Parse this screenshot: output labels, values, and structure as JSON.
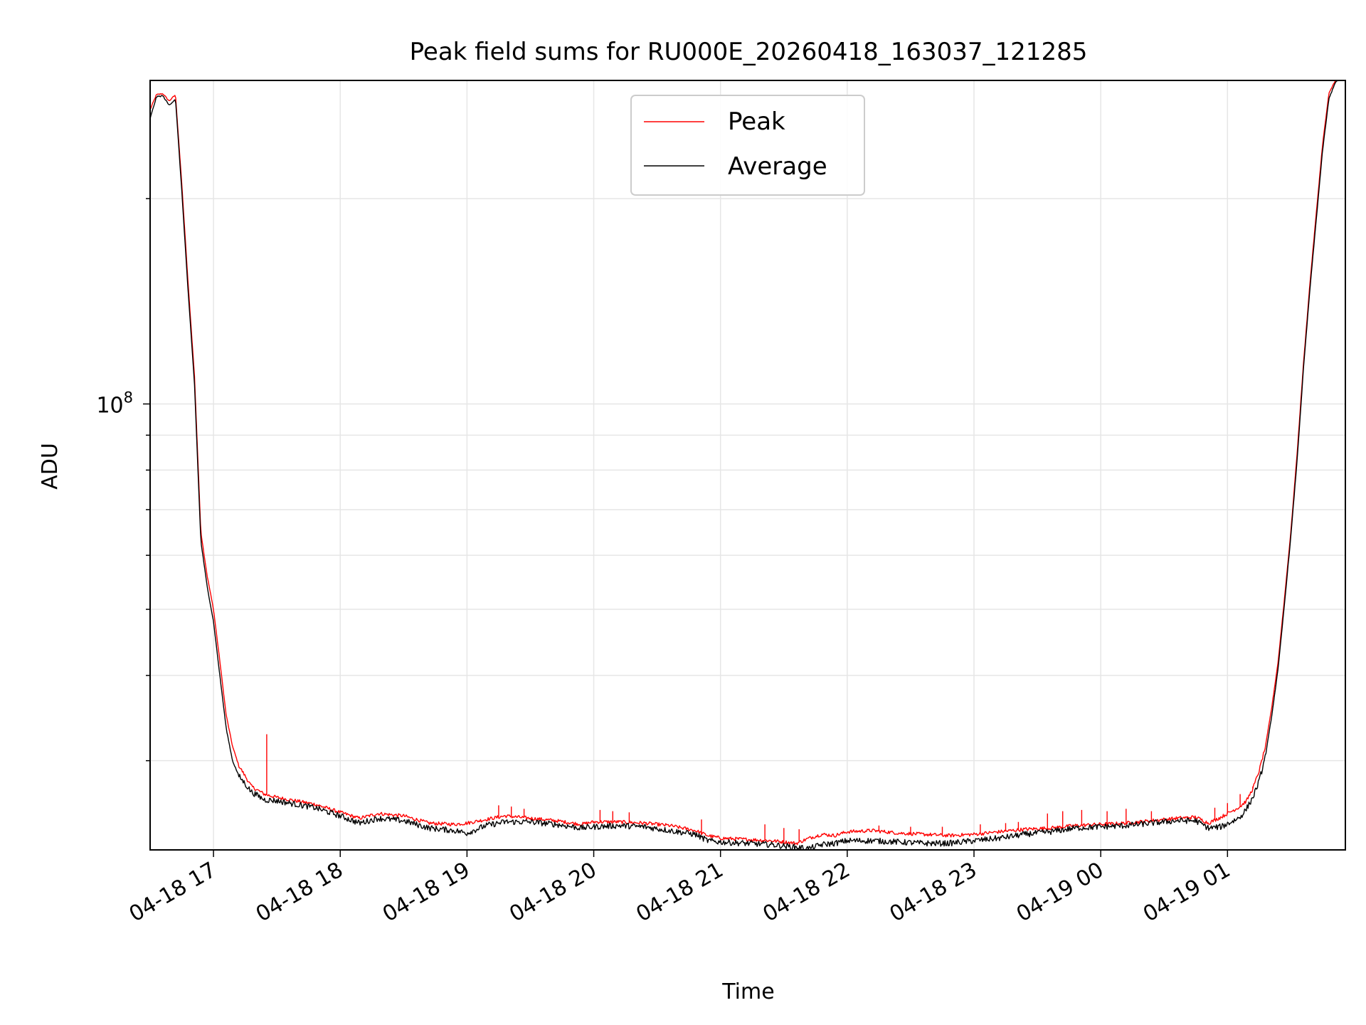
{
  "chart_data": {
    "type": "line",
    "title": "Peak field sums for RU000E_20260418_163037_121285",
    "xlabel": "Time",
    "ylabel": "ADU",
    "yscale": "log",
    "ylim": [
      22200000,
      298000000
    ],
    "xlim_hours": [
      16.5,
      25.93
    ],
    "grid": true,
    "legend_position": "upper center",
    "ytick_labels": [
      {
        "value": 100000000,
        "base": "10",
        "exp": "8"
      }
    ],
    "xtick_labels": [
      {
        "hour": 17,
        "label": "04-18 17"
      },
      {
        "hour": 18,
        "label": "04-18 18"
      },
      {
        "hour": 19,
        "label": "04-18 19"
      },
      {
        "hour": 20,
        "label": "04-18 20"
      },
      {
        "hour": 21,
        "label": "04-18 21"
      },
      {
        "hour": 22,
        "label": "04-18 22"
      },
      {
        "hour": 23,
        "label": "04-18 23"
      },
      {
        "hour": 24,
        "label": "04-19 00"
      },
      {
        "hour": 25,
        "label": "04-19 01"
      }
    ],
    "series": [
      {
        "name": "Peak",
        "color": "#ff0000"
      },
      {
        "name": "Average",
        "color": "#000000"
      }
    ],
    "x_hours": [
      16.5,
      16.55,
      16.6,
      16.65,
      16.7,
      16.75,
      16.8,
      16.85,
      16.9,
      16.95,
      17.0,
      17.05,
      17.1,
      17.15,
      17.2,
      17.3,
      17.4,
      17.5,
      17.6,
      17.8,
      18.0,
      18.15,
      18.3,
      18.5,
      18.7,
      18.9,
      19.0,
      19.15,
      19.3,
      19.5,
      19.7,
      19.9,
      20.0,
      20.2,
      20.4,
      20.6,
      20.8,
      20.9,
      21.0,
      21.2,
      21.4,
      21.5,
      21.6,
      21.7,
      21.8,
      21.9,
      22.0,
      22.2,
      22.4,
      22.6,
      22.8,
      23.0,
      23.2,
      23.4,
      23.6,
      23.8,
      24.0,
      24.2,
      24.4,
      24.6,
      24.75,
      24.85,
      24.95,
      25.05,
      25.1,
      25.15,
      25.2,
      25.25,
      25.3,
      25.35,
      25.4,
      25.45,
      25.5,
      25.55,
      25.6,
      25.65,
      25.7,
      25.75,
      25.8,
      25.85,
      25.9,
      25.93
    ],
    "peak_values": [
      270000000,
      284000000,
      285000000,
      278000000,
      284000000,
      210000000,
      150000000,
      110000000,
      65000000,
      56000000,
      50000000,
      42000000,
      35000000,
      31500000,
      29500000,
      27500000,
      26800000,
      26500000,
      26300000,
      25900000,
      25200000,
      24700000,
      25100000,
      24900000,
      24300000,
      24200000,
      24300000,
      24600000,
      24900000,
      24700000,
      24500000,
      24200000,
      24400000,
      24400000,
      24300000,
      24100000,
      23700000,
      23300000,
      23100000,
      23000000,
      22900000,
      22800000,
      22700000,
      23100000,
      23400000,
      23300000,
      23600000,
      23700000,
      23500000,
      23400000,
      23300000,
      23400000,
      23600000,
      23800000,
      23900000,
      24100000,
      24200000,
      24300000,
      24500000,
      24700000,
      24800000,
      24300000,
      24800000,
      25400000,
      25700000,
      26200000,
      27300000,
      29000000,
      31500000,
      36000000,
      42000000,
      52000000,
      65000000,
      85000000,
      115000000,
      150000000,
      190000000,
      240000000,
      285000000,
      298000000,
      300000000,
      300000000
    ],
    "average_values": [
      262000000,
      282000000,
      283000000,
      274000000,
      280000000,
      205000000,
      146000000,
      107000000,
      63000000,
      54000000,
      48000000,
      40000000,
      33500000,
      30000000,
      28500000,
      27000000,
      26300000,
      26200000,
      26000000,
      25600000,
      24900000,
      24300000,
      24700000,
      24500000,
      23900000,
      23700000,
      23500000,
      24100000,
      24400000,
      24400000,
      24200000,
      23900000,
      24000000,
      24100000,
      24000000,
      23700000,
      23400000,
      22900000,
      22800000,
      22700000,
      22600000,
      22500000,
      22400000,
      22300000,
      22600000,
      22700000,
      22900000,
      22900000,
      22800000,
      22700000,
      22700000,
      22900000,
      23100000,
      23400000,
      23600000,
      23900000,
      24000000,
      24100000,
      24300000,
      24500000,
      24500000,
      23900000,
      24000000,
      24500000,
      24800000,
      25500000,
      26500000,
      28000000,
      30500000,
      35000000,
      41000000,
      51000000,
      64000000,
      83000000,
      113000000,
      147000000,
      186000000,
      235000000,
      280000000,
      296000000,
      300000000,
      300000000
    ],
    "peak_spikes": [
      {
        "hour": 17.42,
        "value": 32800000
      },
      {
        "hour": 19.25,
        "value": 25800000
      },
      {
        "hour": 19.35,
        "value": 25700000
      },
      {
        "hour": 19.45,
        "value": 25500000
      },
      {
        "hour": 20.05,
        "value": 25400000
      },
      {
        "hour": 20.15,
        "value": 25300000
      },
      {
        "hour": 20.28,
        "value": 25200000
      },
      {
        "hour": 20.85,
        "value": 24600000
      },
      {
        "hour": 21.35,
        "value": 24200000
      },
      {
        "hour": 21.5,
        "value": 23900000
      },
      {
        "hour": 21.62,
        "value": 23800000
      },
      {
        "hour": 22.25,
        "value": 24100000
      },
      {
        "hour": 22.5,
        "value": 24000000
      },
      {
        "hour": 22.75,
        "value": 24000000
      },
      {
        "hour": 23.05,
        "value": 24200000
      },
      {
        "hour": 23.25,
        "value": 24300000
      },
      {
        "hour": 23.35,
        "value": 24400000
      },
      {
        "hour": 23.58,
        "value": 25100000
      },
      {
        "hour": 23.7,
        "value": 25300000
      },
      {
        "hour": 23.85,
        "value": 25400000
      },
      {
        "hour": 24.05,
        "value": 25300000
      },
      {
        "hour": 24.2,
        "value": 25500000
      },
      {
        "hour": 24.4,
        "value": 25300000
      },
      {
        "hour": 24.9,
        "value": 25600000
      },
      {
        "hour": 25.0,
        "value": 26000000
      },
      {
        "hour": 25.1,
        "value": 26800000
      },
      {
        "hour": 25.2,
        "value": 27500000
      }
    ]
  }
}
